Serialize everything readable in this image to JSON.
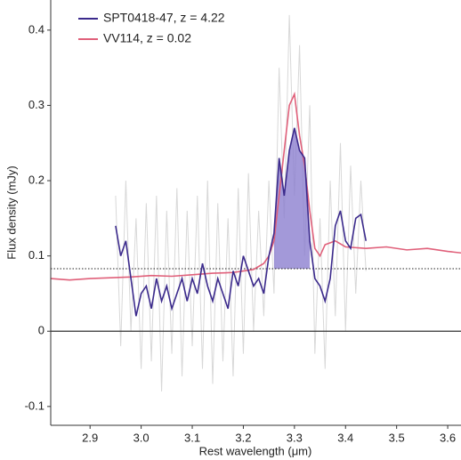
{
  "chart_data": {
    "type": "line",
    "xlabel": "Rest wavelength (μm)",
    "ylabel": "Flux density (mJy)",
    "xlim": [
      2.823,
      3.626
    ],
    "ylim": [
      -0.125,
      0.44
    ],
    "xticks": [
      2.9,
      {
        "value": 3,
        "label": "3.0"
      },
      3.1,
      3.2,
      3.3,
      3.4,
      3.5,
      3.6
    ],
    "yticks": [
      -0.1,
      0,
      0.1,
      0.2,
      0.3,
      0.4
    ],
    "reference_line": 0.083,
    "highlight_xlim": [
      3.26,
      3.33
    ],
    "legend": "upper left",
    "series": [
      {
        "color": "#d8d8d8",
        "x": [
          2.95,
          2.96,
          2.97,
          2.98,
          2.99,
          3.0,
          3.01,
          3.02,
          3.03,
          3.04,
          3.05,
          3.06,
          3.07,
          3.08,
          3.09,
          3.1,
          3.11,
          3.12,
          3.13,
          3.14,
          3.15,
          3.16,
          3.17,
          3.18,
          3.19,
          3.2,
          3.21,
          3.22,
          3.23,
          3.24,
          3.25,
          3.26,
          3.27,
          3.28,
          3.29,
          3.3,
          3.31,
          3.32,
          3.33,
          3.34,
          3.35,
          3.36,
          3.37,
          3.38,
          3.39,
          3.4,
          3.41,
          3.42,
          3.43,
          3.44
        ],
        "values": [
          0.18,
          -0.02,
          0.2,
          0.0,
          0.15,
          -0.05,
          0.17,
          -0.04,
          0.18,
          -0.08,
          0.16,
          -0.03,
          0.19,
          -0.06,
          0.16,
          -0.02,
          0.18,
          -0.05,
          0.2,
          -0.07,
          0.17,
          -0.04,
          0.15,
          -0.06,
          0.19,
          -0.03,
          0.21,
          0.0,
          0.16,
          0.02,
          0.2,
          0.05,
          0.35,
          0.15,
          0.42,
          0.18,
          0.38,
          0.1,
          0.3,
          -0.03,
          0.15,
          -0.05,
          0.2,
          0.02,
          0.25,
          0.0,
          0.22,
          0.05,
          0.2,
          0.08
        ]
      },
      {
        "name": "VV114, z = 0.02",
        "color": "#e0607a",
        "x": [
          2.823,
          2.86,
          2.9,
          2.94,
          2.98,
          3.02,
          3.06,
          3.1,
          3.14,
          3.18,
          3.2,
          3.22,
          3.24,
          3.25,
          3.26,
          3.27,
          3.28,
          3.29,
          3.3,
          3.31,
          3.32,
          3.33,
          3.34,
          3.35,
          3.36,
          3.38,
          3.4,
          3.44,
          3.48,
          3.52,
          3.56,
          3.6,
          3.626
        ],
        "values": [
          0.07,
          0.068,
          0.07,
          0.071,
          0.072,
          0.074,
          0.073,
          0.075,
          0.077,
          0.078,
          0.08,
          0.082,
          0.09,
          0.1,
          0.12,
          0.18,
          0.24,
          0.3,
          0.315,
          0.26,
          0.22,
          0.16,
          0.11,
          0.1,
          0.115,
          0.12,
          0.112,
          0.11,
          0.112,
          0.108,
          0.11,
          0.106,
          0.104
        ]
      },
      {
        "name": "SPT0418-47, z = 4.22",
        "color": "#3b2a8c",
        "x": [
          2.95,
          2.96,
          2.97,
          2.98,
          2.99,
          3.0,
          3.01,
          3.02,
          3.03,
          3.04,
          3.05,
          3.06,
          3.07,
          3.08,
          3.09,
          3.1,
          3.11,
          3.12,
          3.13,
          3.14,
          3.15,
          3.16,
          3.17,
          3.18,
          3.19,
          3.2,
          3.21,
          3.22,
          3.23,
          3.24,
          3.25,
          3.26,
          3.27,
          3.28,
          3.29,
          3.3,
          3.31,
          3.32,
          3.33,
          3.34,
          3.35,
          3.36,
          3.37,
          3.38,
          3.39,
          3.4,
          3.41,
          3.42,
          3.43,
          3.44
        ],
        "values": [
          0.14,
          0.1,
          0.12,
          0.07,
          0.02,
          0.05,
          0.06,
          0.03,
          0.07,
          0.04,
          0.06,
          0.03,
          0.05,
          0.07,
          0.04,
          0.07,
          0.05,
          0.09,
          0.06,
          0.04,
          0.07,
          0.05,
          0.03,
          0.08,
          0.06,
          0.1,
          0.08,
          0.06,
          0.07,
          0.05,
          0.1,
          0.13,
          0.23,
          0.18,
          0.24,
          0.27,
          0.24,
          0.23,
          0.12,
          0.07,
          0.06,
          0.04,
          0.07,
          0.14,
          0.16,
          0.12,
          0.11,
          0.15,
          0.155,
          0.12
        ]
      }
    ]
  }
}
